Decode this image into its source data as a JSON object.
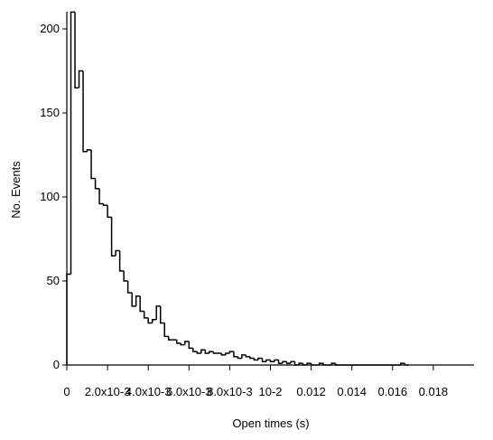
{
  "chart_data": {
    "type": "histogram",
    "xlabel": "Open times (s)",
    "ylabel": "No. Events",
    "bins": [
      0,
      0.0002,
      0.0004,
      0.0006,
      0.0008,
      0.001,
      0.0012,
      0.0014,
      0.0016,
      0.0018,
      0.002,
      0.0022,
      0.0024,
      0.0026,
      0.0028,
      0.003,
      0.0032,
      0.0034,
      0.0036,
      0.0038,
      0.004,
      0.0042,
      0.0044,
      0.0046,
      0.0048,
      0.005,
      0.0052,
      0.0054,
      0.0056,
      0.0058,
      0.006,
      0.0062,
      0.0064,
      0.0066,
      0.0068,
      0.007,
      0.0072,
      0.0074,
      0.0076,
      0.0078,
      0.008,
      0.0082,
      0.0084,
      0.0086,
      0.0088,
      0.009,
      0.0092,
      0.0094,
      0.0096,
      0.0098,
      0.01,
      0.0102,
      0.0104,
      0.0106,
      0.0108,
      0.011,
      0.0112,
      0.0114,
      0.0116,
      0.0118,
      0.012,
      0.0122,
      0.0124,
      0.0126,
      0.0128,
      0.013,
      0.0132,
      0.0134,
      0.0136,
      0.0138,
      0.014,
      0.0142,
      0.0144,
      0.0146,
      0.0148,
      0.015,
      0.0152,
      0.0154,
      0.0156,
      0.0158,
      0.016,
      0.0162,
      0.0164,
      0.0166,
      0.0168
    ],
    "counts": [
      54,
      210,
      165,
      175,
      127,
      128,
      111,
      105,
      96,
      95,
      88,
      65,
      68,
      56,
      50,
      43,
      35,
      41,
      32,
      28,
      25,
      27,
      35,
      25,
      17,
      15,
      15,
      13,
      12,
      14,
      10,
      8,
      7,
      9,
      7,
      8,
      7,
      7,
      6,
      7,
      8,
      5,
      4,
      6,
      5,
      4,
      3,
      4,
      2,
      3,
      2,
      3,
      1,
      2,
      1,
      2,
      0,
      1,
      0,
      1,
      0,
      0,
      1,
      0,
      0,
      1,
      0,
      0,
      0,
      0,
      0,
      0,
      0,
      0,
      0,
      0,
      0,
      0,
      0,
      0,
      0,
      0,
      1,
      0
    ],
    "color": "#000000",
    "xlim": [
      0,
      0.02
    ],
    "ylim": [
      0,
      210
    ],
    "xticks": [
      0,
      {
        "value": 0.002,
        "label": "2.0x10-3"
      },
      {
        "value": 0.004,
        "label": "4.0x10-3"
      },
      {
        "value": 0.006,
        "label": "6.0x10-3"
      },
      {
        "value": 0.008,
        "label": "8.0x10-3"
      },
      {
        "value": 0.01,
        "label": "10-2"
      },
      0.012,
      0.014,
      0.016,
      0.018
    ],
    "yticks": [
      0,
      50,
      100,
      150,
      200
    ]
  }
}
